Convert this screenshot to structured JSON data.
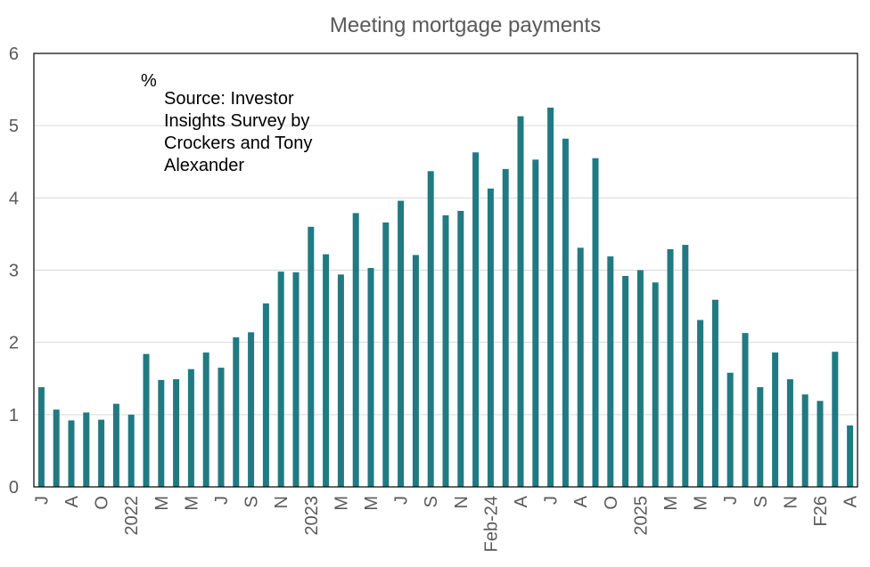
{
  "chart_data": {
    "type": "bar",
    "title": "Meeting mortgage payments",
    "unit_label": "%",
    "annotation": [
      "Source: Investor",
      "Insights Survey by",
      "Crockers and Tony",
      "Alexander"
    ],
    "ylim": [
      0,
      6
    ],
    "yticks": [
      "0",
      "1",
      "2",
      "3",
      "4",
      "5",
      "6"
    ],
    "grid": true,
    "bar_color": "#217A82",
    "tick_labels": [
      "J",
      "",
      "A",
      "",
      "O",
      "",
      "2022",
      "",
      "M",
      "",
      "M",
      "",
      "J",
      "",
      "S",
      "",
      "N",
      "",
      "2023",
      "",
      "M",
      "",
      "M",
      "",
      "J",
      "",
      "S",
      "",
      "N",
      "",
      "Feb-24",
      "",
      "A",
      "",
      "J",
      "",
      "A",
      "",
      "O",
      "",
      "2025",
      "",
      "M",
      "",
      "M",
      "",
      "J",
      "",
      "S",
      "",
      "N",
      "",
      "F26",
      "",
      "A"
    ],
    "values": [
      1.38,
      1.07,
      0.92,
      1.03,
      0.93,
      1.15,
      1.0,
      1.84,
      1.48,
      1.49,
      1.63,
      1.86,
      1.65,
      2.07,
      2.14,
      2.54,
      2.98,
      2.97,
      3.6,
      3.22,
      2.94,
      3.79,
      3.03,
      3.66,
      3.96,
      3.21,
      4.37,
      3.76,
      3.82,
      4.63,
      4.13,
      4.4,
      5.13,
      4.53,
      5.25,
      4.82,
      3.31,
      4.55,
      3.19,
      2.92,
      3.0,
      2.83,
      3.29,
      3.35,
      2.31,
      2.59,
      1.58,
      2.13,
      1.38,
      1.86,
      1.49,
      1.28,
      1.19,
      1.87,
      0.85
    ]
  }
}
